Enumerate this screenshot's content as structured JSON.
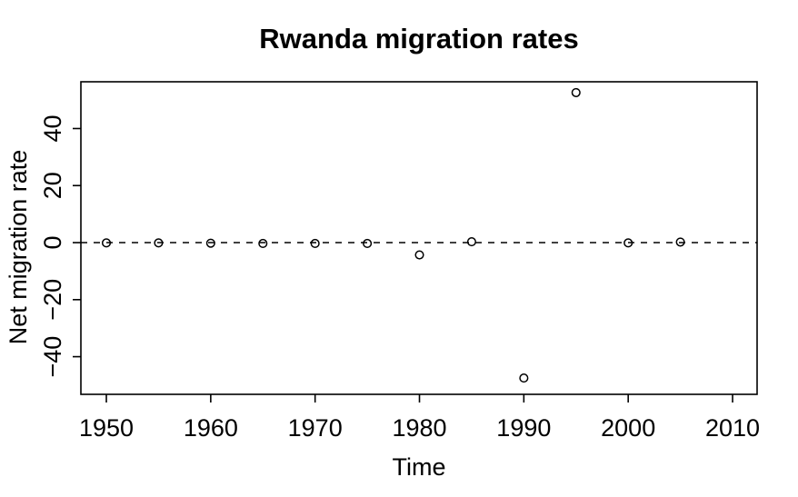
{
  "chart_data": {
    "type": "scatter",
    "title": "Rwanda migration rates",
    "xlabel": "Time",
    "ylabel": "Net migration rate",
    "x": [
      1950,
      1955,
      1960,
      1965,
      1970,
      1975,
      1980,
      1985,
      1990,
      1995,
      2000,
      2005
    ],
    "y": [
      -0.1,
      -0.1,
      -0.2,
      -0.3,
      -0.3,
      -0.3,
      -4.3,
      0.3,
      -47.5,
      52.6,
      -0.1,
      0.2
    ],
    "xticks": {
      "values": [
        1950,
        1960,
        1970,
        1980,
        1990,
        2000,
        2010
      ],
      "labels": [
        "1950",
        "1960",
        "1970",
        "1980",
        "1990",
        "2000",
        "2010"
      ]
    },
    "yticks": {
      "values": [
        -40,
        -20,
        0,
        20,
        40
      ],
      "labels": [
        "−40",
        "−20",
        "0",
        "20",
        "40"
      ]
    },
    "xlim": [
      1947.56,
      2012.35
    ],
    "ylim": [
      -53.2,
      56.4
    ],
    "grid": false,
    "legend": null,
    "zero_line": {
      "y": 0,
      "style": "dashed"
    },
    "point_style": "open-circle",
    "colors": {
      "foreground": "#000000",
      "background": "#ffffff"
    }
  }
}
